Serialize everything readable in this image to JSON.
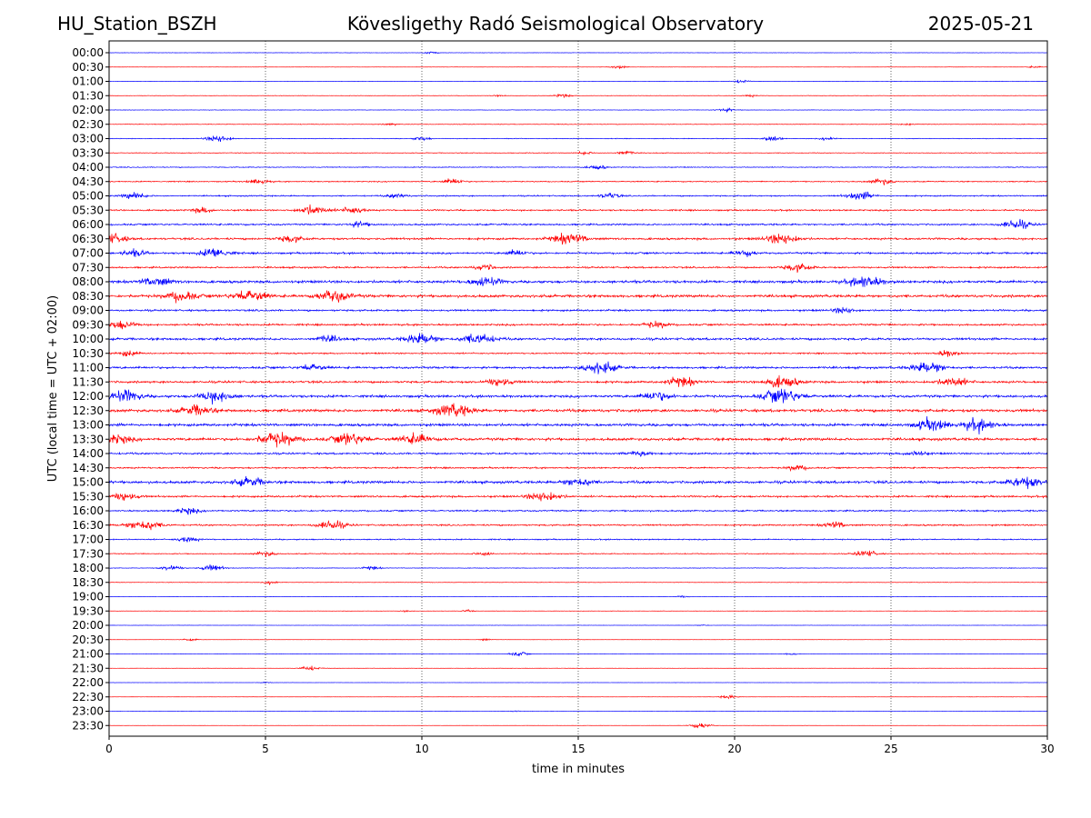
{
  "header": {
    "station": "HU_Station_BSZH",
    "observatory": "Kövesligethy Radó Seismological Observatory",
    "date": "2025-05-21"
  },
  "chart_data": {
    "type": "line",
    "title": "Kövesligethy Radó Seismological Observatory",
    "xlabel": "time in minutes",
    "ylabel": "UTC (local time = UTC + 02:00)",
    "xlim": [
      0,
      30
    ],
    "x_ticks": [
      0,
      5,
      10,
      15,
      20,
      25,
      30
    ],
    "grid": "vertical dotted at x ticks",
    "colors": [
      "#0000ff",
      "#ff0000"
    ],
    "rows": [
      {
        "label": "00:00",
        "color": "#0000ff",
        "level": 0.12,
        "events": [
          {
            "x": 10.3,
            "a": 0.25
          },
          {
            "x": 20.1,
            "a": 0.06
          }
        ]
      },
      {
        "label": "00:30",
        "color": "#ff0000",
        "level": 0.08,
        "events": [
          {
            "x": 16.3,
            "a": 0.3
          },
          {
            "x": 29.6,
            "a": 0.2
          }
        ]
      },
      {
        "label": "01:00",
        "color": "#0000ff",
        "level": 0.12,
        "events": [
          {
            "x": 20.2,
            "a": 0.3
          }
        ]
      },
      {
        "label": "01:30",
        "color": "#ff0000",
        "level": 0.14,
        "events": [
          {
            "x": 14.5,
            "a": 0.35
          },
          {
            "x": 12.5,
            "a": 0.18
          },
          {
            "x": 20.5,
            "a": 0.2
          }
        ]
      },
      {
        "label": "02:00",
        "color": "#0000ff",
        "level": 0.15,
        "events": [
          {
            "x": 19.7,
            "a": 0.35
          }
        ]
      },
      {
        "label": "02:30",
        "color": "#ff0000",
        "level": 0.2,
        "events": [
          {
            "x": 9.0,
            "a": 0.22
          },
          {
            "x": 25.5,
            "a": 0.2
          }
        ]
      },
      {
        "label": "03:00",
        "color": "#0000ff",
        "level": 0.22,
        "events": [
          {
            "x": 3.5,
            "a": 0.65
          },
          {
            "x": 10.0,
            "a": 0.35
          },
          {
            "x": 21.2,
            "a": 0.45
          },
          {
            "x": 23.0,
            "a": 0.3
          }
        ]
      },
      {
        "label": "03:30",
        "color": "#ff0000",
        "level": 0.22,
        "events": [
          {
            "x": 16.5,
            "a": 0.4
          },
          {
            "x": 15.2,
            "a": 0.3
          }
        ]
      },
      {
        "label": "04:00",
        "color": "#0000ff",
        "level": 0.28,
        "events": [
          {
            "x": 15.6,
            "a": 0.4
          }
        ]
      },
      {
        "label": "04:30",
        "color": "#ff0000",
        "level": 0.35,
        "events": [
          {
            "x": 4.8,
            "a": 0.5
          },
          {
            "x": 11.0,
            "a": 0.5
          },
          {
            "x": 24.7,
            "a": 0.55
          }
        ]
      },
      {
        "label": "05:00",
        "color": "#0000ff",
        "level": 0.42,
        "events": [
          {
            "x": 0.8,
            "a": 0.6
          },
          {
            "x": 9.2,
            "a": 0.45
          },
          {
            "x": 24.0,
            "a": 0.75
          },
          {
            "x": 16.0,
            "a": 0.5
          }
        ]
      },
      {
        "label": "05:30",
        "color": "#ff0000",
        "level": 0.5,
        "events": [
          {
            "x": 6.5,
            "a": 0.8
          },
          {
            "x": 7.8,
            "a": 0.6
          },
          {
            "x": 3.0,
            "a": 0.5
          }
        ]
      },
      {
        "label": "06:00",
        "color": "#0000ff",
        "level": 0.55,
        "events": [
          {
            "x": 29.0,
            "a": 0.8
          },
          {
            "x": 8.0,
            "a": 0.5
          }
        ]
      },
      {
        "label": "06:30",
        "color": "#ff0000",
        "level": 0.65,
        "events": [
          {
            "x": 14.7,
            "a": 1.0
          },
          {
            "x": 21.5,
            "a": 0.95
          },
          {
            "x": 0.1,
            "a": 0.8
          },
          {
            "x": 5.8,
            "a": 0.6
          }
        ]
      },
      {
        "label": "07:00",
        "color": "#0000ff",
        "level": 0.6,
        "events": [
          {
            "x": 3.4,
            "a": 0.85
          },
          {
            "x": 0.8,
            "a": 0.6
          },
          {
            "x": 20.3,
            "a": 0.55
          },
          {
            "x": 13.0,
            "a": 0.5
          }
        ]
      },
      {
        "label": "07:30",
        "color": "#ff0000",
        "level": 0.55,
        "events": [
          {
            "x": 22.0,
            "a": 0.7
          },
          {
            "x": 12.0,
            "a": 0.5
          }
        ]
      },
      {
        "label": "08:00",
        "color": "#0000ff",
        "level": 0.85,
        "events": [
          {
            "x": 24.2,
            "a": 1.0
          },
          {
            "x": 1.5,
            "a": 0.8
          },
          {
            "x": 12.0,
            "a": 0.85
          }
        ]
      },
      {
        "label": "08:30",
        "color": "#ff0000",
        "level": 0.85,
        "events": [
          {
            "x": 2.3,
            "a": 0.9
          },
          {
            "x": 4.5,
            "a": 1.0
          },
          {
            "x": 7.2,
            "a": 1.0
          }
        ]
      },
      {
        "label": "09:00",
        "color": "#0000ff",
        "level": 0.6,
        "events": [
          {
            "x": 23.5,
            "a": 0.55
          }
        ]
      },
      {
        "label": "09:30",
        "color": "#ff0000",
        "level": 0.6,
        "events": [
          {
            "x": 0.4,
            "a": 0.75
          },
          {
            "x": 17.5,
            "a": 0.6
          }
        ]
      },
      {
        "label": "10:00",
        "color": "#0000ff",
        "level": 0.75,
        "events": [
          {
            "x": 10.0,
            "a": 0.95
          },
          {
            "x": 11.8,
            "a": 0.95
          },
          {
            "x": 7.0,
            "a": 0.6
          }
        ]
      },
      {
        "label": "10:30",
        "color": "#ff0000",
        "level": 0.45,
        "events": [
          {
            "x": 26.8,
            "a": 0.55
          },
          {
            "x": 0.6,
            "a": 0.5
          }
        ]
      },
      {
        "label": "11:00",
        "color": "#0000ff",
        "level": 0.7,
        "events": [
          {
            "x": 15.7,
            "a": 1.0
          },
          {
            "x": 26.2,
            "a": 1.0
          },
          {
            "x": 6.5,
            "a": 0.6
          }
        ]
      },
      {
        "label": "11:30",
        "color": "#ff0000",
        "level": 0.7,
        "events": [
          {
            "x": 21.5,
            "a": 1.0
          },
          {
            "x": 18.3,
            "a": 0.85
          },
          {
            "x": 12.5,
            "a": 0.7
          },
          {
            "x": 27.0,
            "a": 0.8
          }
        ]
      },
      {
        "label": "12:00",
        "color": "#0000ff",
        "level": 0.8,
        "events": [
          {
            "x": 21.5,
            "a": 1.2
          },
          {
            "x": 0.5,
            "a": 1.0
          },
          {
            "x": 3.4,
            "a": 1.0
          },
          {
            "x": 17.5,
            "a": 0.8
          }
        ]
      },
      {
        "label": "12:30",
        "color": "#ff0000",
        "level": 0.9,
        "events": [
          {
            "x": 11.0,
            "a": 1.1
          },
          {
            "x": 2.8,
            "a": 0.9
          }
        ]
      },
      {
        "label": "13:00",
        "color": "#0000ff",
        "level": 0.85,
        "events": [
          {
            "x": 26.3,
            "a": 1.0
          },
          {
            "x": 27.8,
            "a": 1.0
          }
        ]
      },
      {
        "label": "13:30",
        "color": "#ff0000",
        "level": 0.85,
        "events": [
          {
            "x": 5.4,
            "a": 1.2
          },
          {
            "x": 7.7,
            "a": 1.0
          },
          {
            "x": 0.2,
            "a": 0.9
          },
          {
            "x": 9.8,
            "a": 0.9
          }
        ]
      },
      {
        "label": "14:00",
        "color": "#0000ff",
        "level": 0.6,
        "events": [
          {
            "x": 17.0,
            "a": 0.6
          },
          {
            "x": 25.8,
            "a": 0.5
          }
        ]
      },
      {
        "label": "14:30",
        "color": "#ff0000",
        "level": 0.5,
        "events": [
          {
            "x": 22.0,
            "a": 0.5
          }
        ]
      },
      {
        "label": "15:00",
        "color": "#0000ff",
        "level": 0.85,
        "events": [
          {
            "x": 29.3,
            "a": 1.0
          },
          {
            "x": 4.5,
            "a": 0.8
          },
          {
            "x": 15.0,
            "a": 0.8
          }
        ]
      },
      {
        "label": "15:30",
        "color": "#ff0000",
        "level": 0.6,
        "events": [
          {
            "x": 13.9,
            "a": 0.9
          },
          {
            "x": 0.5,
            "a": 0.7
          }
        ]
      },
      {
        "label": "16:00",
        "color": "#0000ff",
        "level": 0.5,
        "events": [
          {
            "x": 2.5,
            "a": 0.6
          }
        ]
      },
      {
        "label": "16:30",
        "color": "#ff0000",
        "level": 0.5,
        "events": [
          {
            "x": 1.1,
            "a": 1.0
          },
          {
            "x": 7.1,
            "a": 0.8
          },
          {
            "x": 23.2,
            "a": 0.6
          }
        ]
      },
      {
        "label": "17:00",
        "color": "#0000ff",
        "level": 0.4,
        "events": [
          {
            "x": 2.5,
            "a": 0.5
          }
        ]
      },
      {
        "label": "17:30",
        "color": "#ff0000",
        "level": 0.3,
        "events": [
          {
            "x": 24.2,
            "a": 0.6
          },
          {
            "x": 5.0,
            "a": 0.45
          },
          {
            "x": 12.0,
            "a": 0.4
          }
        ]
      },
      {
        "label": "18:00",
        "color": "#0000ff",
        "level": 0.2,
        "events": [
          {
            "x": 2.0,
            "a": 0.5
          },
          {
            "x": 3.3,
            "a": 0.6
          },
          {
            "x": 8.4,
            "a": 0.35
          }
        ]
      },
      {
        "label": "18:30",
        "color": "#ff0000",
        "level": 0.15,
        "events": [
          {
            "x": 5.2,
            "a": 0.3
          }
        ]
      },
      {
        "label": "19:00",
        "color": "#0000ff",
        "level": 0.1,
        "events": [
          {
            "x": 18.3,
            "a": 0.2
          }
        ]
      },
      {
        "label": "19:30",
        "color": "#ff0000",
        "level": 0.1,
        "events": [
          {
            "x": 11.5,
            "a": 0.2
          },
          {
            "x": 9.5,
            "a": 0.15
          }
        ]
      },
      {
        "label": "20:00",
        "color": "#0000ff",
        "level": 0.08,
        "events": [
          {
            "x": 19.0,
            "a": 0.15
          }
        ]
      },
      {
        "label": "20:30",
        "color": "#ff0000",
        "level": 0.08,
        "events": [
          {
            "x": 2.6,
            "a": 0.25
          },
          {
            "x": 12.0,
            "a": 0.18
          }
        ]
      },
      {
        "label": "21:00",
        "color": "#0000ff",
        "level": 0.1,
        "events": [
          {
            "x": 13.1,
            "a": 0.4
          },
          {
            "x": 21.8,
            "a": 0.2
          }
        ]
      },
      {
        "label": "21:30",
        "color": "#ff0000",
        "level": 0.08,
        "events": [
          {
            "x": 6.4,
            "a": 0.45
          }
        ]
      },
      {
        "label": "22:00",
        "color": "#0000ff",
        "level": 0.07,
        "events": [
          {
            "x": 5.0,
            "a": 0.15
          }
        ]
      },
      {
        "label": "22:30",
        "color": "#ff0000",
        "level": 0.07,
        "events": [
          {
            "x": 19.8,
            "a": 0.35
          }
        ]
      },
      {
        "label": "23:00",
        "color": "#0000ff",
        "level": 0.07,
        "events": [
          {
            "x": 13.0,
            "a": 0.12
          }
        ]
      },
      {
        "label": "23:30",
        "color": "#ff0000",
        "level": 0.06,
        "events": [
          {
            "x": 18.9,
            "a": 0.5
          }
        ]
      }
    ]
  }
}
